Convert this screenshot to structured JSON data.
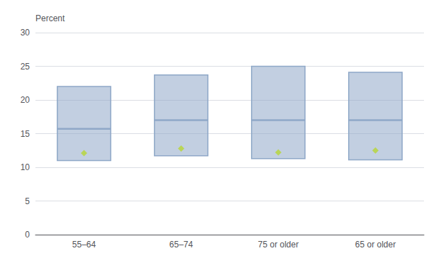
{
  "chart_data": {
    "type": "box",
    "ylabel": "Percent",
    "categories": [
      "55–64",
      "65–74",
      "75 or older",
      "65 or older"
    ],
    "q1": [
      11.0,
      11.7,
      11.3,
      11.1
    ],
    "median": [
      15.7,
      17.0,
      17.0,
      17.0
    ],
    "q3": [
      22.0,
      23.7,
      25.0,
      24.1
    ],
    "mean": [
      12.1,
      12.8,
      12.2,
      12.5
    ],
    "color": "#8fa8c8",
    "marker": "diamond",
    "ylim": [
      0,
      30
    ],
    "yticks": [
      0,
      5,
      10,
      15,
      20,
      25,
      30
    ],
    "grid": true
  }
}
